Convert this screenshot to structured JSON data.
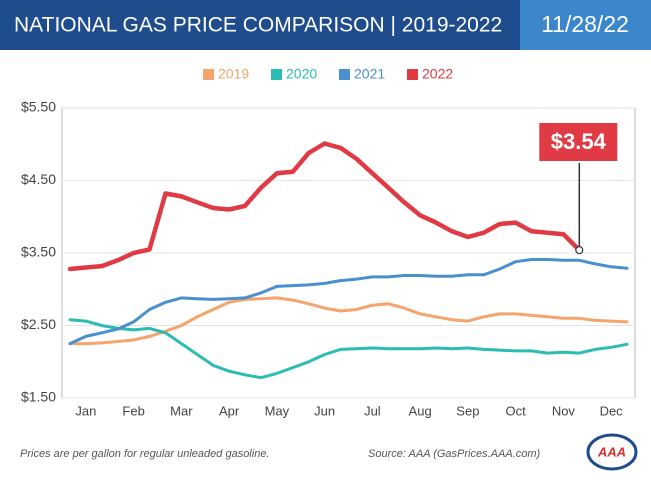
{
  "chart_data": {
    "type": "line",
    "title": "NATIONAL GAS PRICE COMPARISON | 2019-2022",
    "date": "11/28/22",
    "categories": [
      null,
      "Jan",
      null,
      null,
      "Feb",
      null,
      null,
      "Mar",
      null,
      null,
      "Apr",
      null,
      null,
      "May",
      null,
      null,
      "Jun",
      null,
      null,
      "Jul",
      null,
      null,
      "Aug",
      null,
      null,
      "Sep",
      null,
      null,
      "Oct",
      null,
      null,
      "Nov",
      null,
      null,
      "Dec",
      null
    ],
    "series": [
      {
        "name": "2019",
        "color": "#f5a46b",
        "values": [
          2.25,
          2.25,
          2.26,
          2.28,
          2.3,
          2.35,
          2.42,
          2.5,
          2.62,
          2.72,
          2.82,
          2.86,
          2.87,
          2.88,
          2.85,
          2.8,
          2.74,
          2.7,
          2.72,
          2.78,
          2.8,
          2.74,
          2.66,
          2.62,
          2.58,
          2.56,
          2.62,
          2.66,
          2.66,
          2.64,
          2.62,
          2.6,
          2.6,
          2.57,
          2.56,
          2.55
        ]
      },
      {
        "name": "2020",
        "color": "#2bbdb2",
        "values": [
          2.58,
          2.56,
          2.5,
          2.46,
          2.44,
          2.46,
          2.4,
          2.25,
          2.1,
          1.95,
          1.87,
          1.82,
          1.78,
          1.84,
          1.92,
          2.0,
          2.1,
          2.17,
          2.18,
          2.19,
          2.18,
          2.18,
          2.18,
          2.19,
          2.18,
          2.19,
          2.17,
          2.16,
          2.15,
          2.15,
          2.12,
          2.13,
          2.12,
          2.17,
          2.2,
          2.24
        ]
      },
      {
        "name": "2021",
        "color": "#4a8fd0",
        "values": [
          2.25,
          2.35,
          2.4,
          2.45,
          2.55,
          2.72,
          2.82,
          2.88,
          2.87,
          2.86,
          2.87,
          2.88,
          2.95,
          3.04,
          3.05,
          3.06,
          3.08,
          3.12,
          3.14,
          3.17,
          3.17,
          3.19,
          3.19,
          3.18,
          3.18,
          3.2,
          3.2,
          3.28,
          3.38,
          3.41,
          3.41,
          3.4,
          3.4,
          3.35,
          3.31,
          3.29
        ]
      },
      {
        "name": "2022",
        "color": "#e03a45",
        "values": [
          3.28,
          3.3,
          3.32,
          3.4,
          3.5,
          3.55,
          4.32,
          4.28,
          4.2,
          4.12,
          4.1,
          4.15,
          4.4,
          4.6,
          4.62,
          4.88,
          5.01,
          4.95,
          4.8,
          4.6,
          4.4,
          4.2,
          4.02,
          3.92,
          3.8,
          3.72,
          3.78,
          3.9,
          3.92,
          3.8,
          3.78,
          3.76,
          3.54,
          null,
          null,
          null
        ],
        "value_labels": [
          null,
          null,
          null,
          null,
          null,
          null,
          null,
          null,
          null,
          null,
          null,
          null,
          null,
          null,
          null,
          null,
          null,
          null,
          null,
          null,
          null,
          null,
          null,
          null,
          null,
          null,
          null,
          null,
          null,
          null,
          null,
          null,
          "$3.54",
          null,
          null,
          null
        ]
      }
    ],
    "ylim": [
      1.5,
      5.5
    ],
    "yticks": [
      {
        "value": 1.5,
        "label": "$1.50"
      },
      {
        "value": 2.5,
        "label": "$2.50"
      },
      {
        "value": 3.5,
        "label": "$3.50"
      },
      {
        "value": 4.5,
        "label": "$4.50"
      },
      {
        "value": 5.5,
        "label": "$5.50"
      }
    ],
    "grid": true,
    "footnote": "Prices are per gallon for regular unleaded gasoline.",
    "source": "Source: AAA (GasPrices.AAA.com)",
    "logo": "AAA"
  }
}
